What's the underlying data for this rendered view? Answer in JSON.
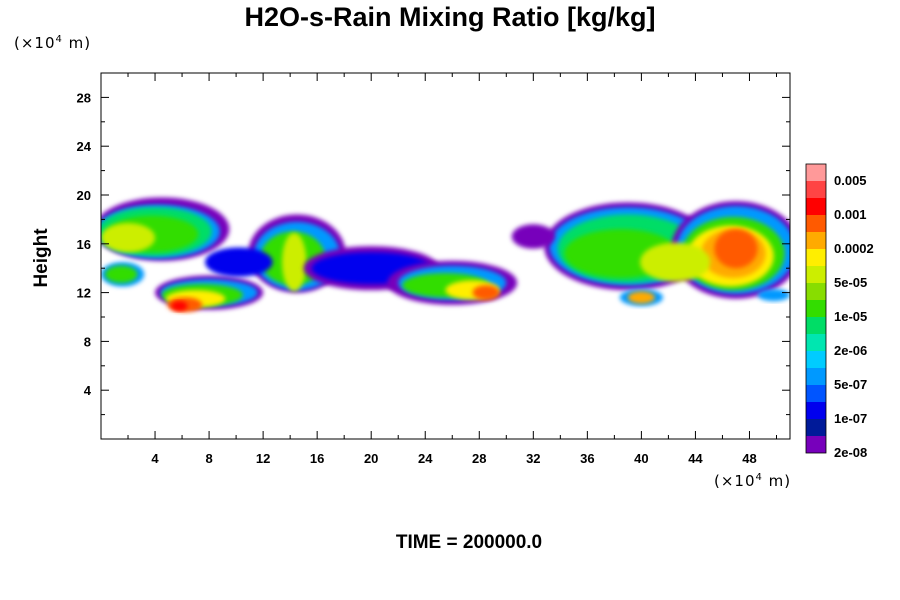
{
  "chart_data": {
    "type": "heatmap",
    "title": "H2O-s-Rain Mixing Ratio [kg/kg]",
    "ylabel": "Height",
    "xlabel": "",
    "x_unit": {
      "prefix": "(×10",
      "exp": "4",
      "suffix": " m)"
    },
    "y_unit": {
      "prefix": "(×10",
      "exp": "4",
      "suffix": " m)"
    },
    "xlim": [
      0,
      51
    ],
    "ylim": [
      0,
      30
    ],
    "x_ticks": [
      4,
      8,
      12,
      16,
      20,
      24,
      28,
      32,
      36,
      40,
      44,
      48
    ],
    "y_ticks": [
      4,
      8,
      12,
      16,
      20,
      24,
      28
    ],
    "colorbar": {
      "colors": [
        "#ff9999",
        "#ff4444",
        "#ff0000",
        "#ff5a00",
        "#ffaa00",
        "#ffee00",
        "#ccee00",
        "#88dd00",
        "#33dd00",
        "#00dd66",
        "#00e6b0",
        "#00ccff",
        "#0099ff",
        "#0055ff",
        "#0000ee",
        "#001a99",
        "#7700bb"
      ],
      "labels": [
        "0.005",
        "0.001",
        "0.0002",
        "5e-05",
        "1e-05",
        "2e-06",
        "5e-07",
        "1e-07",
        "2e-08"
      ]
    },
    "footer": "TIME = 200000.0"
  }
}
